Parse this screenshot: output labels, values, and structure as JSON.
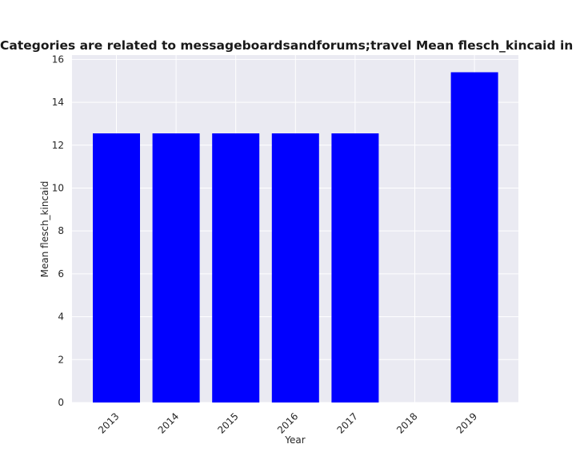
{
  "chart_data": {
    "type": "bar",
    "title": "Categories are related to messageboardsandforums;travel Mean flesch_kincaid in privacy policies",
    "xlabel": "Year",
    "ylabel": "Mean flesch_kincaid",
    "categories": [
      "2013",
      "2014",
      "2015",
      "2016",
      "2017",
      "2018",
      "2019"
    ],
    "values": [
      12.55,
      12.55,
      12.55,
      12.55,
      12.55,
      0,
      15.4
    ],
    "ylim": [
      0,
      16.2
    ],
    "yticks": [
      "0",
      "2",
      "4",
      "6",
      "8",
      "10",
      "12",
      "14",
      "16"
    ],
    "bar_color": "#0000ff",
    "plot_background": "#eaeaf2",
    "grid_color": "#ffffff",
    "grid": true
  }
}
